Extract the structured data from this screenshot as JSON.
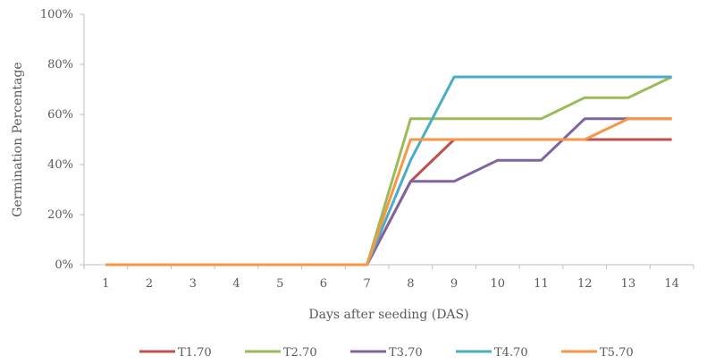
{
  "chart_data": {
    "type": "line",
    "x": [
      1,
      2,
      3,
      4,
      5,
      6,
      7,
      8,
      9,
      10,
      11,
      12,
      13,
      14
    ],
    "x_tick_labels": [
      "1",
      "2",
      "3",
      "4",
      "5",
      "6",
      "7",
      "8",
      "9",
      "10",
      "11",
      "12",
      "13",
      "14"
    ],
    "xlabel": "Days after seeding (DAS)",
    "ylabel": "Germination Percentage",
    "ylim": [
      0,
      100
    ],
    "y_tick_labels": [
      "0%",
      "20%",
      "40%",
      "60%",
      "80%",
      "100%"
    ],
    "grid": false,
    "legend_position": "bottom",
    "series": [
      {
        "name": "T1.70",
        "color": "#c0504d",
        "values": [
          0,
          0,
          0,
          0,
          0,
          0,
          0,
          33.3,
          50,
          50,
          50,
          50,
          50,
          50
        ]
      },
      {
        "name": "T2.70",
        "color": "#9bbb59",
        "values": [
          0,
          0,
          0,
          0,
          0,
          0,
          0,
          58.3,
          58.3,
          58.3,
          58.3,
          66.7,
          66.7,
          75
        ]
      },
      {
        "name": "T3.70",
        "color": "#8064a2",
        "values": [
          0,
          0,
          0,
          0,
          0,
          0,
          0,
          33.3,
          33.3,
          41.7,
          41.7,
          58.3,
          58.3,
          58.3
        ]
      },
      {
        "name": "T4.70",
        "color": "#4bacc6",
        "values": [
          0,
          0,
          0,
          0,
          0,
          0,
          0,
          41.7,
          75,
          75,
          75,
          75,
          75,
          75
        ]
      },
      {
        "name": "T5.70",
        "color": "#f79646",
        "values": [
          0,
          0,
          0,
          0,
          0,
          0,
          0,
          50,
          50,
          50,
          50,
          50,
          58.3,
          58.3
        ]
      }
    ]
  }
}
